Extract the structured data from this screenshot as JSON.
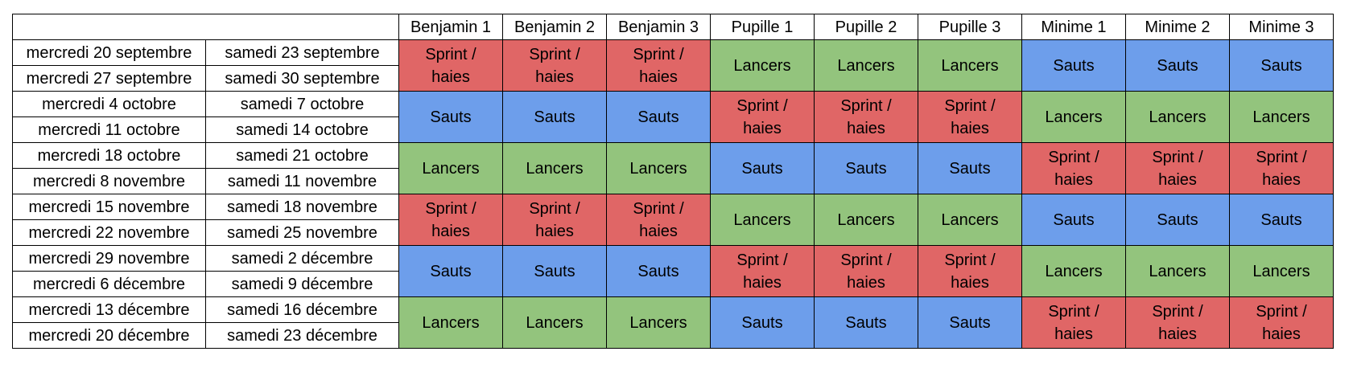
{
  "colors": {
    "Sprint / haies": "#e06666",
    "Lancers": "#93c47d",
    "Sauts": "#6d9eeb"
  },
  "headers": [
    "Benjamin 1",
    "Benjamin 2",
    "Benjamin 3",
    "Pupille 1",
    "Pupille 2",
    "Pupille 3",
    "Minime 1",
    "Minime 2",
    "Minime 3"
  ],
  "date_rows": [
    [
      "mercredi 20 septembre",
      "samedi 23 septembre"
    ],
    [
      "mercredi 27 septembre",
      "samedi 30 septembre"
    ],
    [
      "mercredi 4 octobre",
      "samedi 7 octobre"
    ],
    [
      "mercredi 11 octobre",
      "samedi 14 octobre"
    ],
    [
      "mercredi 18 octobre",
      "samedi 21 octobre"
    ],
    [
      "mercredi 8 novembre",
      "samedi 11 novembre"
    ],
    [
      "mercredi 15 novembre",
      "samedi 18 novembre"
    ],
    [
      "mercredi 22 novembre",
      "samedi 25 novembre"
    ],
    [
      "mercredi 29 novembre",
      "samedi 2 décembre"
    ],
    [
      "mercredi 6 décembre",
      "samedi 9 décembre"
    ],
    [
      "mercredi 13 décembre",
      "samedi 16 décembre"
    ],
    [
      "mercredi 20 décembre",
      "samedi 23 décembre"
    ]
  ],
  "blocks": [
    [
      "Sprint / haies",
      "Sprint / haies",
      "Sprint / haies",
      "Lancers",
      "Lancers",
      "Lancers",
      "Sauts",
      "Sauts",
      "Sauts"
    ],
    [
      "Sauts",
      "Sauts",
      "Sauts",
      "Sprint / haies",
      "Sprint / haies",
      "Sprint / haies",
      "Lancers",
      "Lancers",
      "Lancers"
    ],
    [
      "Lancers",
      "Lancers",
      "Lancers",
      "Sauts",
      "Sauts",
      "Sauts",
      "Sprint / haies",
      "Sprint / haies",
      "Sprint / haies"
    ],
    [
      "Sprint / haies",
      "Sprint / haies",
      "Sprint / haies",
      "Lancers",
      "Lancers",
      "Lancers",
      "Sauts",
      "Sauts",
      "Sauts"
    ],
    [
      "Sauts",
      "Sauts",
      "Sauts",
      "Sprint / haies",
      "Sprint / haies",
      "Sprint / haies",
      "Lancers",
      "Lancers",
      "Lancers"
    ],
    [
      "Lancers",
      "Lancers",
      "Lancers",
      "Sauts",
      "Sauts",
      "Sauts",
      "Sprint / haies",
      "Sprint / haies",
      "Sprint / haies"
    ]
  ]
}
